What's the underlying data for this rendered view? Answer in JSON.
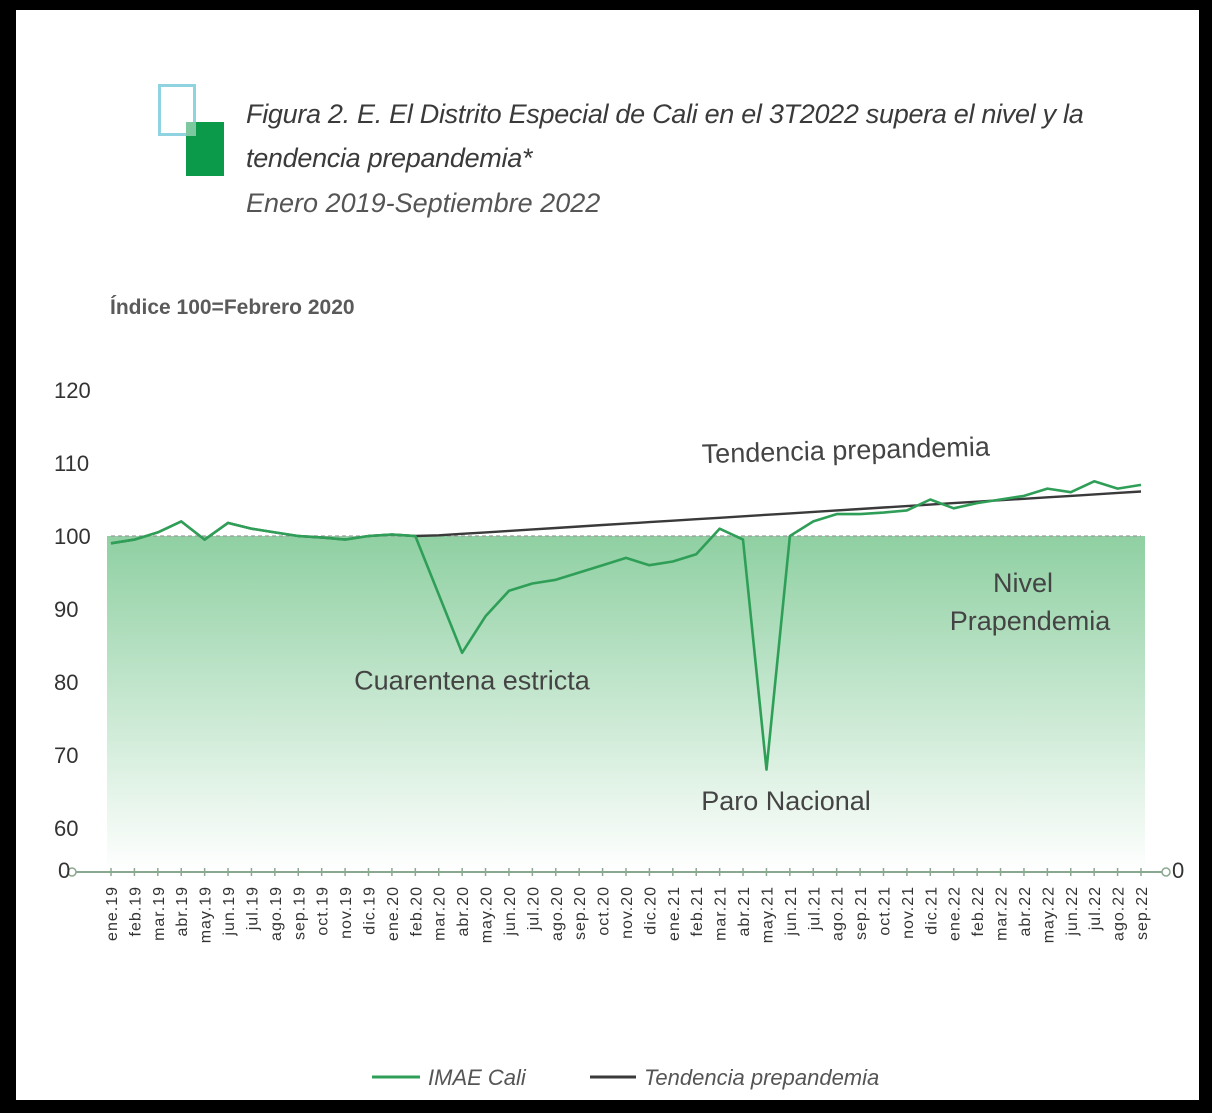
{
  "figure": {
    "title": "Figura 2. E. El Distrito Especial de Cali en el 3T2022 supera el nivel y la tendencia prepandemia*",
    "subtitle": "Enero 2019-Septiembre 2022",
    "y_axis_label": "Índice 100=Febrero 2020"
  },
  "colors": {
    "imae": "#2f9f58",
    "tendencia": "#3a3a3a",
    "area_top": "#8fd0a2",
    "area_bottom": "#ffffff",
    "logo_outline": "#8ed3df",
    "logo_fill": "#0a9a4a"
  },
  "chart_data": {
    "type": "line",
    "ylim": [
      60,
      120
    ],
    "yticks": [
      "120",
      "110",
      "100",
      "90",
      "80",
      "70",
      "60"
    ],
    "y_zero_label": "0",
    "grid": false,
    "legend_position": "bottom",
    "categories": [
      "ene.19",
      "feb.19",
      "mar.19",
      "abr.19",
      "may.19",
      "jun.19",
      "jul.19",
      "ago.19",
      "sep.19",
      "oct.19",
      "nov.19",
      "dic.19",
      "ene.20",
      "feb.20",
      "mar.20",
      "abr.20",
      "may.20",
      "jun.20",
      "jul.20",
      "ago.20",
      "sep.20",
      "oct.20",
      "nov.20",
      "dic.20",
      "ene.21",
      "feb.21",
      "mar.21",
      "abr.21",
      "may.21",
      "jun.21",
      "jul.21",
      "ago.21",
      "sep.21",
      "oct.21",
      "nov.21",
      "dic.21",
      "ene.22",
      "feb.22",
      "mar.22",
      "abr.22",
      "may.22",
      "jun.22",
      "jul.22",
      "ago.22",
      "sep.22"
    ],
    "series": [
      {
        "name": "IMAE Cali",
        "values": [
          99,
          99.5,
          100.5,
          102,
          99.5,
          101.8,
          101,
          100.5,
          100,
          99.8,
          99.5,
          100,
          100.2,
          100,
          92,
          84,
          89,
          92.5,
          93.5,
          94,
          95,
          96,
          97,
          96,
          96.5,
          97.5,
          101,
          99.5,
          68,
          100,
          102,
          103,
          103,
          103.2,
          103.5,
          105,
          103.8,
          104.5,
          105,
          105.5,
          106.5,
          106,
          107.5,
          106.5,
          107
        ]
      },
      {
        "name": "Tendencia prepandemia",
        "values": [
          99,
          99.5,
          100.5,
          102,
          99.5,
          101.8,
          101,
          100.5,
          100,
          99.8,
          99.5,
          100,
          100.2,
          100,
          100.1,
          100.3,
          100.5,
          100.7,
          100.9,
          101.1,
          101.3,
          101.5,
          101.7,
          101.9,
          102.1,
          102.3,
          102.5,
          102.7,
          102.9,
          103.1,
          103.3,
          103.5,
          103.7,
          103.9,
          104.1,
          104.3,
          104.5,
          104.7,
          104.9,
          105.1,
          105.3,
          105.5,
          105.7,
          105.9,
          106.1
        ]
      }
    ],
    "reference_line": {
      "value": 100,
      "label_line1": "Nivel",
      "label_line2": "Prapendemia"
    },
    "annotations": [
      {
        "text": "Tendencia prepandemia",
        "x": "may.21",
        "y": 110.5
      },
      {
        "text": "Cuarentena estricta",
        "x": "abr.20",
        "y": 79
      },
      {
        "text": "Paro Nacional",
        "x": "may.21",
        "y": 62.5
      }
    ]
  }
}
